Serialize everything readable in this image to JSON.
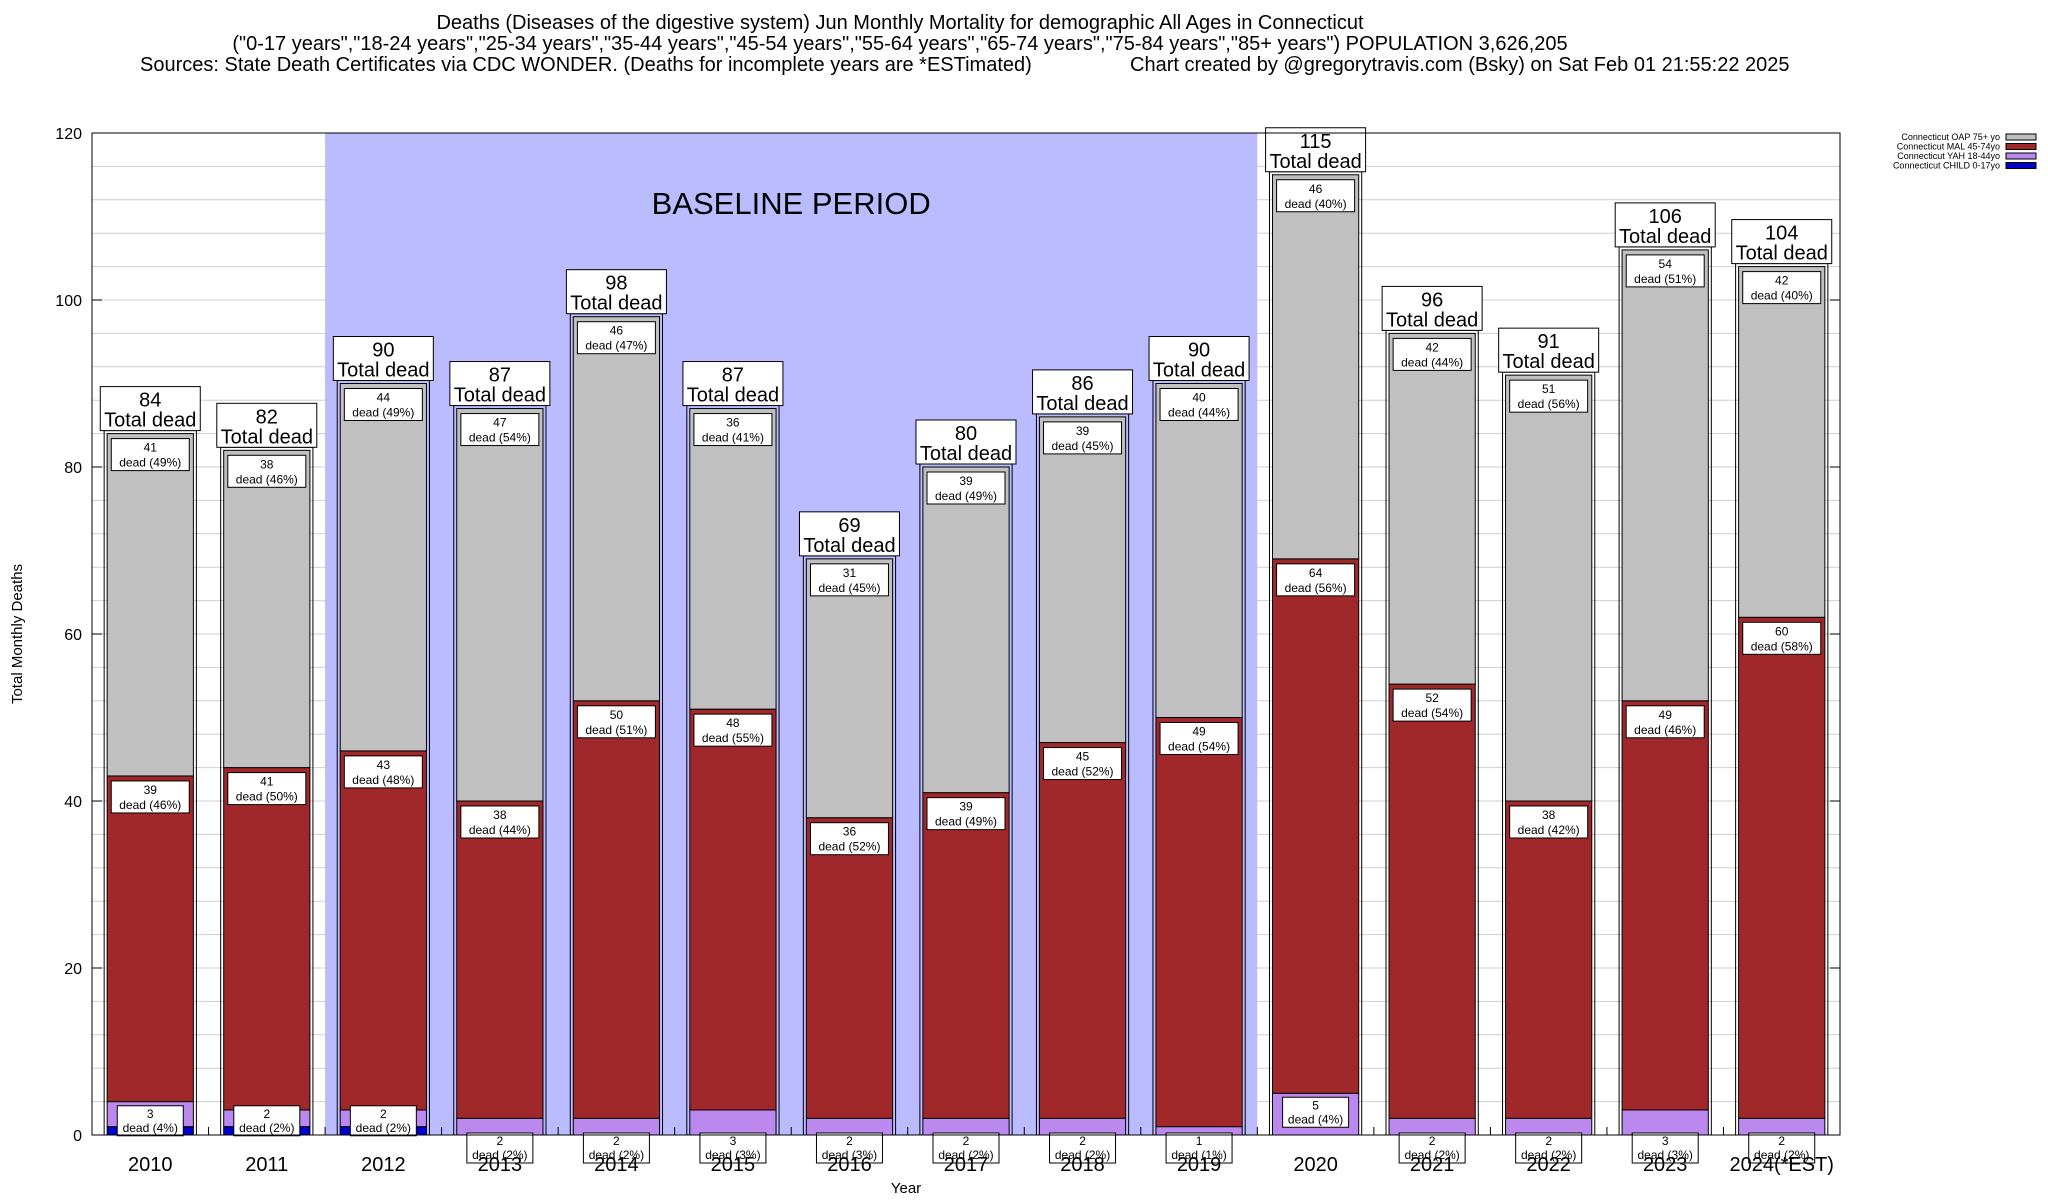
{
  "chart_data": {
    "type": "bar",
    "stacked": true,
    "title": "Deaths (Diseases of the digestive system) Jun Monthly Mortality for demographic All Ages in Connecticut",
    "subtitle": "(\"0-17 years\",\"18-24 years\",\"25-34 years\",\"35-44 years\",\"45-54 years\",\"55-64 years\",\"65-74 years\",\"75-84 years\",\"85+ years\") POPULATION 3,626,205",
    "source": "Sources: State Death Certificates via CDC WONDER. (Deaths for incomplete years are *ESTimated)",
    "credit": "Chart created by @gregorytravis.com (Bsky) on Sat Feb 01 21:55:22 2025",
    "xlabel": "Year",
    "ylabel": "Total Monthly Deaths",
    "ylim": [
      0,
      120
    ],
    "yticks": [
      0,
      20,
      40,
      60,
      80,
      100,
      120
    ],
    "grid": true,
    "legend_position": "top-right",
    "categories": [
      "2010",
      "2011",
      "2012",
      "2013",
      "2014",
      "2015",
      "2016",
      "2017",
      "2018",
      "2019",
      "2020",
      "2021",
      "2022",
      "2023",
      "2024(*EST)"
    ],
    "series": [
      {
        "name": "Connecticut CHILD 0-17yo",
        "color": "#0000cc",
        "values": [
          1,
          1,
          1,
          0,
          0,
          0,
          0,
          0,
          0,
          0,
          0,
          0,
          0,
          0,
          0
        ]
      },
      {
        "name": "Connecticut YAH 18-44yo",
        "color": "#bb88ee",
        "values": [
          3,
          2,
          2,
          2,
          2,
          3,
          2,
          2,
          2,
          1,
          5,
          2,
          2,
          3,
          2
        ]
      },
      {
        "name": "Connecticut MAL 45-74yo",
        "color": "#a0282a",
        "values": [
          39,
          41,
          43,
          38,
          50,
          48,
          36,
          39,
          45,
          49,
          64,
          52,
          38,
          49,
          60
        ]
      },
      {
        "name": "Connecticut OAP 75+ yo",
        "color": "#c0c0c0",
        "values": [
          41,
          38,
          44,
          47,
          46,
          36,
          31,
          39,
          39,
          40,
          46,
          42,
          51,
          54,
          42
        ]
      }
    ],
    "totals": [
      84,
      82,
      90,
      87,
      98,
      87,
      69,
      80,
      86,
      90,
      115,
      96,
      91,
      106,
      104
    ],
    "total_label": "Total dead",
    "dead_word": "dead",
    "segment_labels": {
      "Connecticut YAH 18-44yo": [
        "3",
        "2",
        "2",
        "2",
        "2",
        "3",
        "2",
        "2",
        "2",
        "1",
        "5",
        "2",
        "2",
        "3",
        "2"
      ],
      "Connecticut MAL 45-74yo": [
        "39",
        "41",
        "43",
        "38",
        "50",
        "48",
        "36",
        "39",
        "45",
        "49",
        "64",
        "52",
        "38",
        "49",
        "60"
      ],
      "Connecticut OAP 75+ yo": [
        "41",
        "38",
        "44",
        "47",
        "46",
        "36",
        "31",
        "39",
        "39",
        "40",
        "46",
        "42",
        "51",
        "54",
        "42"
      ]
    },
    "segment_pcts": {
      "Connecticut YAH 18-44yo": [
        "(4%)",
        "(2%)",
        "(2%)",
        "(2%)",
        "(2%)",
        "(3%)",
        "(3%)",
        "(2%)",
        "(2%)",
        "(1%)",
        "(4%)",
        "(2%)",
        "(2%)",
        "(3%)",
        "(2%)"
      ],
      "Connecticut MAL 45-74yo": [
        "(46%)",
        "(50%)",
        "(48%)",
        "(44%)",
        "(51%)",
        "(55%)",
        "(52%)",
        "(49%)",
        "(52%)",
        "(54%)",
        "(56%)",
        "(54%)",
        "(42%)",
        "(46%)",
        "(58%)"
      ],
      "Connecticut OAP 75+ yo": [
        "(49%)",
        "(46%)",
        "(49%)",
        "(54%)",
        "(47%)",
        "(41%)",
        "(45%)",
        "(49%)",
        "(45%)",
        "(44%)",
        "(40%)",
        "(44%)",
        "(56%)",
        "(51%)",
        "(40%)"
      ]
    },
    "annotation": {
      "text": "BASELINE PERIOD",
      "from": "2012",
      "to": "2019",
      "color": "#bbbbff"
    }
  }
}
